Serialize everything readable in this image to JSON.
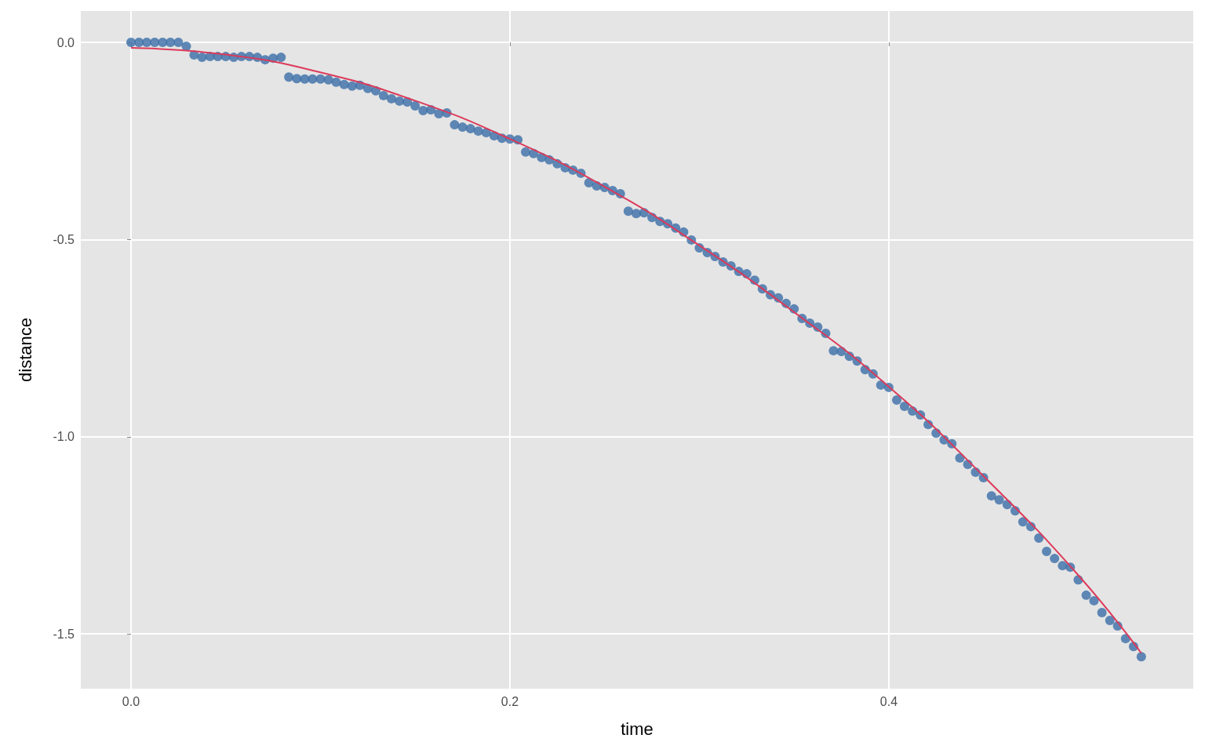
{
  "chart_data": {
    "type": "scatter",
    "xlabel": "time",
    "ylabel": "distance",
    "xlim": [
      -0.0265,
      0.5607
    ],
    "ylim": [
      -1.639,
      0.0796
    ],
    "xticks": [
      {
        "value": 0,
        "label": "0.0"
      },
      {
        "value": 0.2,
        "label": "0.2"
      },
      {
        "value": 0.4,
        "label": "0.4"
      }
    ],
    "yticks": [
      {
        "value": 0,
        "label": "0.0"
      },
      {
        "value": -0.5,
        "label": "-0.5"
      },
      {
        "value": -1,
        "label": "-1.0"
      },
      {
        "value": -1.5,
        "label": "-1.5"
      }
    ],
    "grid": true,
    "marker": "circle",
    "series": [
      {
        "color": "#3b6ea8",
        "x": [
          0,
          0.0042,
          0.0083,
          0.0125,
          0.0167,
          0.0208,
          0.025,
          0.0292,
          0.0333,
          0.0375,
          0.0417,
          0.0458,
          0.05,
          0.0542,
          0.0583,
          0.0625,
          0.0667,
          0.0708,
          0.075,
          0.0792,
          0.0833,
          0.0875,
          0.0917,
          0.0958,
          0.1,
          0.1042,
          0.1083,
          0.1125,
          0.1167,
          0.1208,
          0.125,
          0.1292,
          0.1333,
          0.1375,
          0.1417,
          0.1458,
          0.15,
          0.1542,
          0.1583,
          0.1625,
          0.1667,
          0.1708,
          0.175,
          0.1792,
          0.1833,
          0.1875,
          0.1917,
          0.1958,
          0.2,
          0.2042,
          0.2083,
          0.2125,
          0.2167,
          0.2208,
          0.225,
          0.2292,
          0.2333,
          0.2375,
          0.2417,
          0.2458,
          0.25,
          0.2542,
          0.2583,
          0.2625,
          0.2667,
          0.2708,
          0.275,
          0.2792,
          0.2833,
          0.2875,
          0.2917,
          0.2958,
          0.3,
          0.3042,
          0.3083,
          0.3125,
          0.3167,
          0.3208,
          0.325,
          0.3292,
          0.3333,
          0.3375,
          0.3417,
          0.3458,
          0.35,
          0.3542,
          0.3583,
          0.3625,
          0.3667,
          0.3708,
          0.375,
          0.3792,
          0.3833,
          0.3875,
          0.3917,
          0.3958,
          0.4,
          0.4042,
          0.4083,
          0.4125,
          0.4167,
          0.4208,
          0.425,
          0.4292,
          0.4333,
          0.4375,
          0.4417,
          0.4458,
          0.45,
          0.4542,
          0.4583,
          0.4625,
          0.4667,
          0.4708,
          0.475,
          0.4792,
          0.4833,
          0.4875,
          0.4917,
          0.4958,
          0.5,
          0.5042,
          0.5083,
          0.5125,
          0.5167,
          0.5208,
          0.525,
          0.5292,
          0.5333
        ],
        "values": [
          0,
          0,
          0,
          0,
          0,
          0,
          0,
          -0.01,
          -0.032,
          -0.038,
          -0.036,
          -0.036,
          -0.036,
          -0.038,
          -0.036,
          -0.036,
          -0.038,
          -0.044,
          -0.04,
          -0.038,
          -0.088,
          -0.092,
          -0.093,
          -0.093,
          -0.093,
          -0.095,
          -0.101,
          -0.107,
          -0.111,
          -0.109,
          -0.117,
          -0.123,
          -0.135,
          -0.143,
          -0.149,
          -0.151,
          -0.161,
          -0.173,
          -0.171,
          -0.181,
          -0.179,
          -0.209,
          -0.215,
          -0.219,
          -0.225,
          -0.229,
          -0.237,
          -0.243,
          -0.245,
          -0.247,
          -0.278,
          -0.282,
          -0.292,
          -0.298,
          -0.308,
          -0.318,
          -0.324,
          -0.332,
          -0.356,
          -0.364,
          -0.368,
          -0.376,
          -0.384,
          -0.428,
          -0.434,
          -0.432,
          -0.444,
          -0.454,
          -0.46,
          -0.471,
          -0.481,
          -0.501,
          -0.521,
          -0.533,
          -0.543,
          -0.557,
          -0.567,
          -0.581,
          -0.587,
          -0.603,
          -0.625,
          -0.64,
          -0.648,
          -0.662,
          -0.676,
          -0.7,
          -0.712,
          -0.722,
          -0.738,
          -0.782,
          -0.784,
          -0.796,
          -0.808,
          -0.83,
          -0.841,
          -0.869,
          -0.875,
          -0.907,
          -0.923,
          -0.935,
          -0.945,
          -0.969,
          -0.991,
          -1.008,
          -1.018,
          -1.054,
          -1.07,
          -1.09,
          -1.104,
          -1.15,
          -1.16,
          -1.172,
          -1.188,
          -1.216,
          -1.228,
          -1.257,
          -1.291,
          -1.309,
          -1.327,
          -1.331,
          -1.363,
          -1.402,
          -1.416,
          -1.446,
          -1.466,
          -1.48,
          -1.512,
          -1.532,
          -1.558
        ]
      },
      {
        "type": "line",
        "color": "#dc3a5a",
        "marker": "none",
        "x": [
          0,
          0.05,
          0.1,
          0.15,
          0.2,
          0.25,
          0.3,
          0.35,
          0.4,
          0.45,
          0.5,
          0.5333
        ],
        "values": [
          -0.014,
          -0.031,
          -0.076,
          -0.148,
          -0.245,
          -0.366,
          -0.515,
          -0.684,
          -0.873,
          -1.1,
          -1.351,
          -1.549
        ]
      }
    ]
  }
}
